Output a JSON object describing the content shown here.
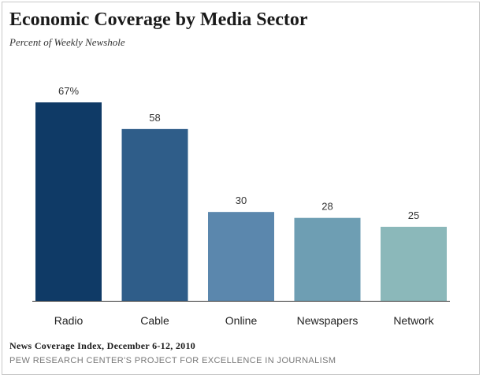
{
  "chart_data": {
    "type": "bar",
    "title": "Economic Coverage by Media Sector",
    "subtitle": "Percent of Weekly Newshole",
    "categories": [
      "Radio",
      "Cable",
      "Online",
      "Newspapers",
      "Network"
    ],
    "values": [
      67,
      58,
      30,
      28,
      25
    ],
    "value_labels": [
      "67%",
      "58",
      "30",
      "28",
      "25"
    ],
    "colors": [
      "#0f3a66",
      "#2f5d89",
      "#5b87ad",
      "#6e9eb3",
      "#8bb8ba"
    ],
    "xlabel": "",
    "ylabel": "",
    "ylim": [
      0,
      67
    ],
    "grid": false
  },
  "footer": {
    "note": "News Coverage Index, December 6-12, 2010",
    "source": "PEW RESEARCH CENTER'S PROJECT FOR EXCELLENCE IN JOURNALISM"
  }
}
